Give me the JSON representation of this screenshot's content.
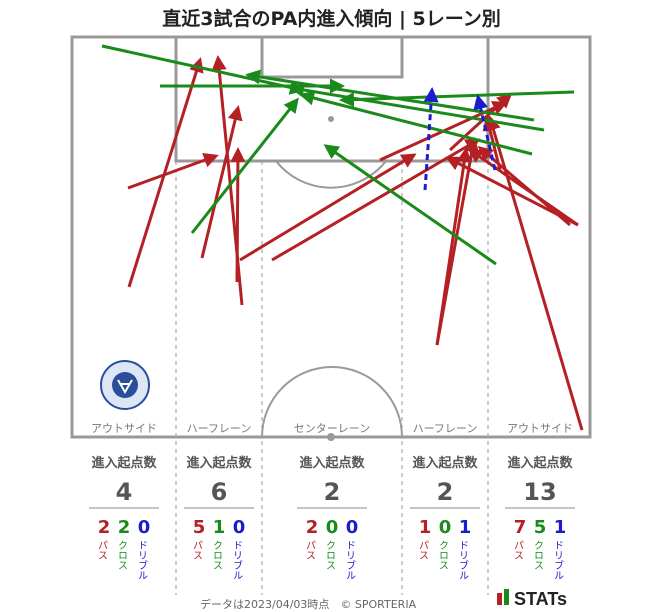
{
  "title": "直近3試合のPA内進入傾向 | 5レーン別",
  "lanes": [
    {
      "label": "アウトサイド",
      "header": "進入起点数",
      "total": "4",
      "pass": "2",
      "cross": "2",
      "dribble": "0"
    },
    {
      "label": "ハーフレーン",
      "header": "進入起点数",
      "total": "6",
      "pass": "5",
      "cross": "1",
      "dribble": "0"
    },
    {
      "label": "センターレーン",
      "header": "進入起点数",
      "total": "2",
      "pass": "2",
      "cross": "0",
      "dribble": "0"
    },
    {
      "label": "ハーフレーン",
      "header": "進入起点数",
      "total": "2",
      "pass": "1",
      "cross": "0",
      "dribble": "1"
    },
    {
      "label": "アウトサイド",
      "header": "進入起点数",
      "total": "13",
      "pass": "7",
      "cross": "5",
      "dribble": "1"
    }
  ],
  "legend": {
    "pass": "パス",
    "cross": "クロス",
    "dribble": "ドリブル"
  },
  "colors": {
    "pass": "#b52025",
    "cross": "#1a8a1a",
    "dribble": "#1c1ccc",
    "pitch_line": "#999999"
  },
  "footer": "データは2023/04/03時点　© SPORTERIA",
  "brand": "STATs"
}
